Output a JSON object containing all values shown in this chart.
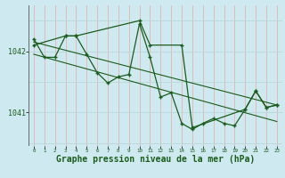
{
  "bg_color": "#ceeaf0",
  "grid_color_v": "#e8b0b0",
  "grid_color_h": "#b8d8d8",
  "line_color": "#1a5c1a",
  "xlabel": "Graphe pression niveau de la mer (hPa)",
  "xlabel_fontsize": 7,
  "yticks": [
    1041,
    1042
  ],
  "xlim": [
    -0.5,
    23.5
  ],
  "ylim": [
    1040.45,
    1042.75
  ],
  "series1_x": [
    0,
    1,
    2,
    3,
    4,
    5,
    6,
    7,
    8,
    9,
    10,
    11,
    12,
    13,
    14,
    15,
    16,
    17,
    18,
    19,
    20,
    21,
    22,
    23
  ],
  "series1_y": [
    1042.2,
    1041.9,
    1041.9,
    1042.25,
    1042.25,
    1041.95,
    1041.65,
    1041.48,
    1041.58,
    1041.62,
    1042.45,
    1041.9,
    1041.25,
    1041.32,
    1040.82,
    1040.72,
    1040.82,
    1040.9,
    1040.82,
    1040.78,
    1041.05,
    1041.35,
    1041.08,
    1041.12
  ],
  "series2_x": [
    0,
    3,
    4,
    10,
    11,
    14,
    15,
    20,
    21,
    22,
    23
  ],
  "series2_y": [
    1042.1,
    1042.25,
    1042.25,
    1042.5,
    1042.1,
    1042.1,
    1040.75,
    1041.05,
    1041.35,
    1041.08,
    1041.12
  ],
  "trend1_x": [
    0,
    23
  ],
  "trend1_y": [
    1042.15,
    1041.12
  ],
  "trend2_x": [
    0,
    23
  ],
  "trend2_y": [
    1041.95,
    1040.85
  ]
}
